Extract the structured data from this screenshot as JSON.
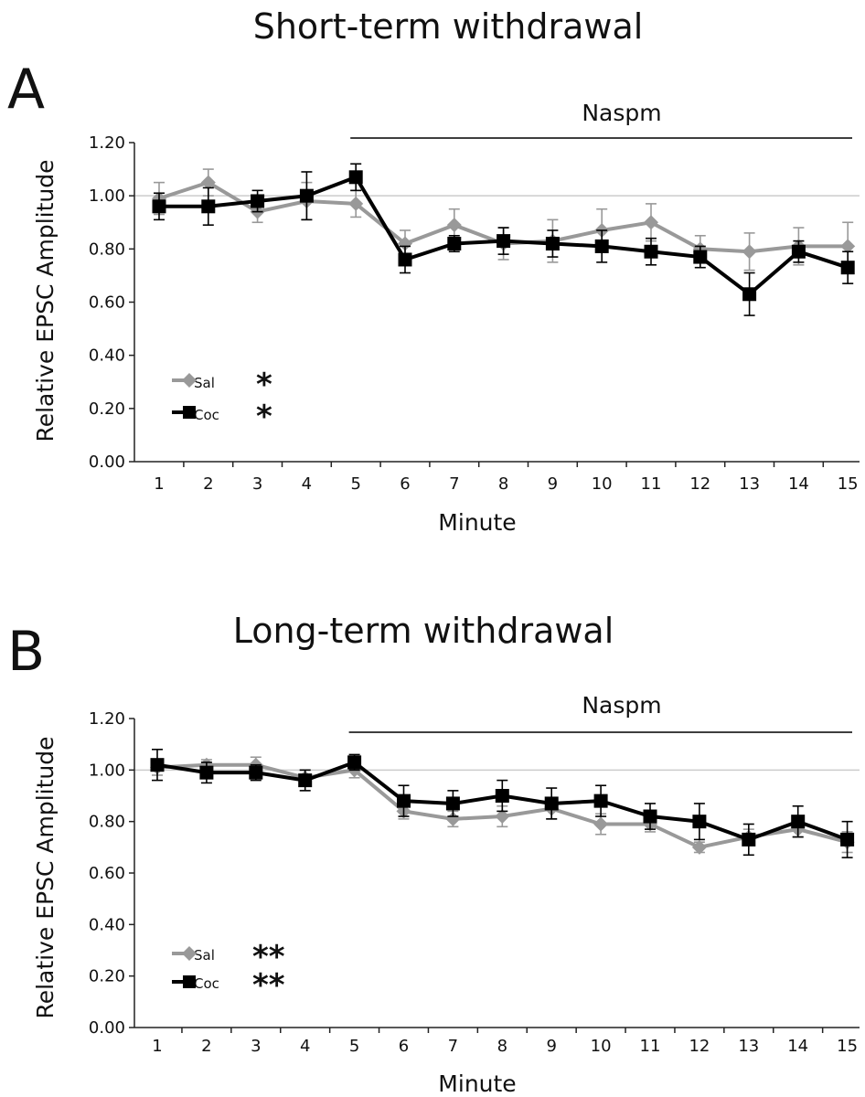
{
  "chart_data": [
    {
      "type": "line",
      "panel_letter": "A",
      "title": "Short-term withdrawal",
      "xlabel": "Minute",
      "ylabel": "Relative EPSC Amplitude",
      "ylim": [
        0,
        1.2
      ],
      "yticks": [
        "0.00",
        "0.20",
        "0.40",
        "0.60",
        "0.80",
        "1.00",
        "1.20"
      ],
      "categories": [
        "1",
        "2",
        "3",
        "4",
        "5",
        "6",
        "7",
        "8",
        "9",
        "10",
        "11",
        "12",
        "13",
        "14",
        "15"
      ],
      "reference_line": 1.0,
      "annotation": {
        "text": "Naspm",
        "from": "5",
        "to": "15"
      },
      "legend_position": "bottom-left",
      "series": [
        {
          "name": "Sal",
          "color": "#999999",
          "marker": "diamond",
          "significance": "*",
          "values": [
            0.99,
            1.05,
            0.94,
            0.98,
            0.97,
            0.82,
            0.89,
            0.82,
            0.83,
            0.87,
            0.9,
            0.8,
            0.79,
            0.81,
            0.81
          ],
          "errors": [
            0.06,
            0.05,
            0.04,
            0.07,
            0.05,
            0.05,
            0.06,
            0.06,
            0.08,
            0.08,
            0.07,
            0.05,
            0.07,
            0.07,
            0.09
          ]
        },
        {
          "name": "Coc",
          "color": "#000000",
          "marker": "square",
          "significance": "*",
          "values": [
            0.96,
            0.96,
            0.98,
            1.0,
            1.07,
            0.76,
            0.82,
            0.83,
            0.82,
            0.81,
            0.79,
            0.77,
            0.63,
            0.79,
            0.73
          ],
          "errors": [
            0.05,
            0.07,
            0.04,
            0.09,
            0.05,
            0.05,
            0.03,
            0.05,
            0.05,
            0.06,
            0.05,
            0.04,
            0.08,
            0.04,
            0.06
          ]
        }
      ]
    },
    {
      "type": "line",
      "panel_letter": "B",
      "title": "Long-term withdrawal",
      "xlabel": "Minute",
      "ylabel": "Relative EPSC Amplitude",
      "ylim": [
        0,
        1.2
      ],
      "yticks": [
        "0.00",
        "0.20",
        "0.40",
        "0.60",
        "0.80",
        "1.00",
        "1.20"
      ],
      "categories": [
        "1",
        "2",
        "3",
        "4",
        "5",
        "6",
        "7",
        "8",
        "9",
        "10",
        "11",
        "12",
        "13",
        "14",
        "15"
      ],
      "reference_line": 1.0,
      "annotation": {
        "text": "Naspm",
        "from": "5",
        "to": "15"
      },
      "legend_position": "bottom-left",
      "series": [
        {
          "name": "Sal",
          "color": "#999999",
          "marker": "diamond",
          "significance": "**",
          "values": [
            1.01,
            1.02,
            1.02,
            0.97,
            1.0,
            0.84,
            0.81,
            0.82,
            0.85,
            0.79,
            0.79,
            0.7,
            0.74,
            0.77,
            0.72
          ],
          "errors": [
            0.03,
            0.02,
            0.03,
            0.03,
            0.03,
            0.03,
            0.03,
            0.04,
            0.04,
            0.04,
            0.03,
            0.02,
            0.03,
            0.03,
            0.04
          ]
        },
        {
          "name": "Coc",
          "color": "#000000",
          "marker": "square",
          "significance": "**",
          "values": [
            1.02,
            0.99,
            0.99,
            0.96,
            1.03,
            0.88,
            0.87,
            0.9,
            0.87,
            0.88,
            0.82,
            0.8,
            0.73,
            0.8,
            0.73
          ],
          "errors": [
            0.06,
            0.04,
            0.03,
            0.04,
            0.03,
            0.06,
            0.05,
            0.06,
            0.06,
            0.06,
            0.05,
            0.07,
            0.06,
            0.06,
            0.07
          ]
        }
      ]
    }
  ]
}
